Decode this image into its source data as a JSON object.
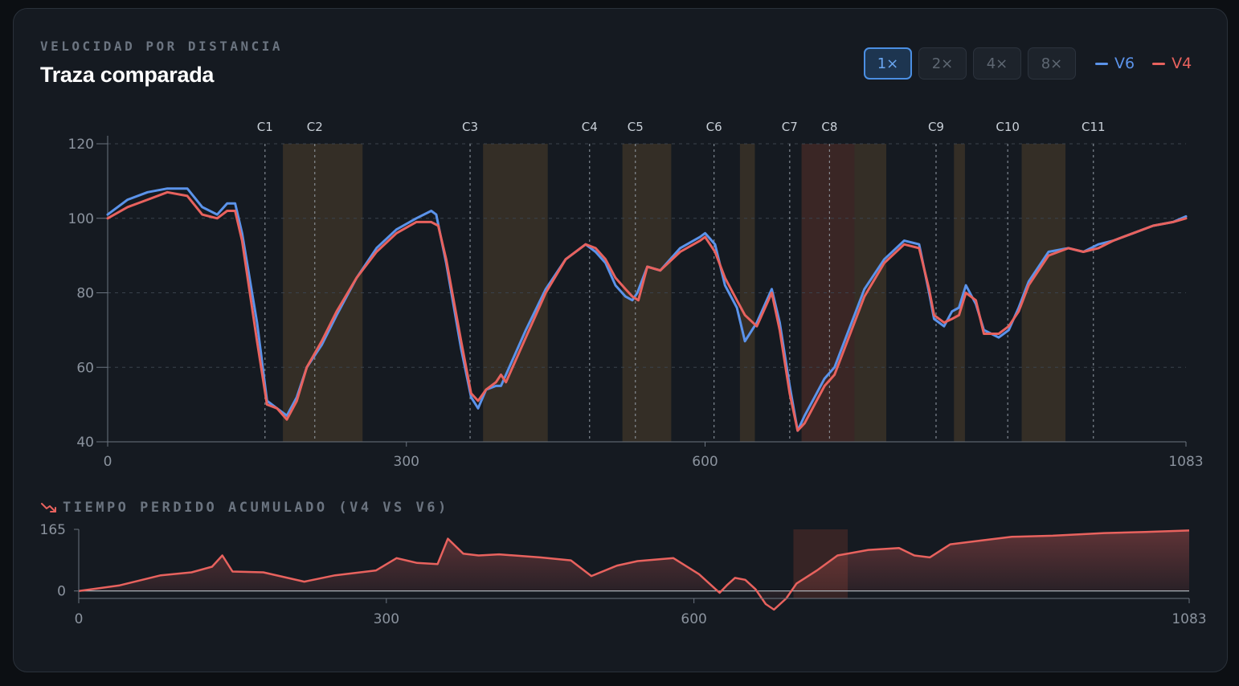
{
  "header": {
    "eyebrow": "VELOCIDAD POR DISTANCIA",
    "title": "Traza comparada"
  },
  "zoom": {
    "options": [
      "1×",
      "2×",
      "4×",
      "8×"
    ],
    "selected": "1×"
  },
  "colors": {
    "v6": "#5b93ea",
    "v4": "#e8625e",
    "highlight": "#3a3327",
    "loss_highlight": "#3b2626",
    "grid": "#3a424c",
    "axis": "#6b7480"
  },
  "chart_data": [
    {
      "type": "line",
      "xlim": [
        0,
        1083
      ],
      "ylim": [
        40,
        120
      ],
      "x_ticks": [
        "0",
        "300",
        "600",
        "1083"
      ],
      "x_tick_values": [
        0,
        300,
        600,
        1083
      ],
      "y_ticks": [
        "40",
        "60",
        "80",
        "100",
        "120"
      ],
      "y_tick_values": [
        40,
        60,
        80,
        100,
        120
      ],
      "grid": "horizontal dashed",
      "legend": "top-right",
      "corners": [
        {
          "label": "C1",
          "x": 158
        },
        {
          "label": "C2",
          "x": 208
        },
        {
          "label": "C3",
          "x": 364
        },
        {
          "label": "C4",
          "x": 484
        },
        {
          "label": "C5",
          "x": 530
        },
        {
          "label": "C6",
          "x": 609
        },
        {
          "label": "C7",
          "x": 685
        },
        {
          "label": "C8",
          "x": 725
        },
        {
          "label": "C9",
          "x": 832
        },
        {
          "label": "C10",
          "x": 904
        },
        {
          "label": "C11",
          "x": 990
        }
      ],
      "zones": [
        {
          "from": 176,
          "to": 256
        },
        {
          "from": 377,
          "to": 442
        },
        {
          "from": 517,
          "to": 566
        },
        {
          "from": 635,
          "to": 650
        },
        {
          "from": 697,
          "to": 782
        },
        {
          "from": 850,
          "to": 861
        },
        {
          "from": 918,
          "to": 962
        }
      ],
      "loss_zone": {
        "from": 697,
        "to": 750
      },
      "series": [
        {
          "name": "V6",
          "x": [
            0,
            20,
            40,
            60,
            80,
            95,
            110,
            120,
            128,
            135,
            150,
            160,
            170,
            180,
            190,
            200,
            215,
            230,
            250,
            270,
            290,
            310,
            325,
            330,
            340,
            355,
            365,
            372,
            380,
            390,
            395,
            400,
            420,
            440,
            460,
            480,
            490,
            500,
            510,
            520,
            527,
            532,
            542,
            555,
            575,
            595,
            600,
            610,
            620,
            632,
            640,
            652,
            667,
            675,
            685,
            693,
            700,
            710,
            720,
            730,
            740,
            760,
            780,
            800,
            815,
            825,
            830,
            840,
            848,
            855,
            862,
            872,
            880,
            895,
            905,
            915,
            925,
            945,
            965,
            980,
            995,
            1010,
            1030,
            1050,
            1070,
            1083
          ],
          "y": [
            101,
            105,
            107,
            108,
            108,
            103,
            101,
            104,
            104,
            96,
            72,
            51,
            49,
            47,
            52,
            60,
            66,
            74,
            84,
            92,
            97,
            100,
            102,
            101,
            88,
            65,
            52,
            49,
            54,
            55,
            55,
            58,
            70,
            81,
            89,
            93,
            91,
            88,
            82,
            79,
            78,
            80,
            87,
            86,
            92,
            95,
            96,
            93,
            82,
            76,
            67,
            72,
            81,
            72,
            55,
            43,
            47,
            52,
            57,
            60,
            67,
            81,
            89,
            94,
            93,
            80,
            73,
            71,
            75,
            76,
            82,
            77,
            70,
            68,
            70,
            76,
            83,
            91,
            92,
            91,
            93,
            94,
            96,
            98,
            99,
            100.5
          ]
        },
        {
          "name": "V4",
          "x": [
            0,
            20,
            40,
            60,
            80,
            95,
            110,
            120,
            128,
            135,
            150,
            160,
            170,
            180,
            190,
            200,
            215,
            230,
            250,
            270,
            290,
            310,
            325,
            332,
            340,
            355,
            365,
            372,
            380,
            390,
            395,
            400,
            420,
            440,
            460,
            480,
            490,
            500,
            510,
            520,
            527,
            533,
            542,
            555,
            575,
            595,
            600,
            610,
            620,
            632,
            640,
            652,
            667,
            675,
            685,
            693,
            700,
            710,
            720,
            730,
            740,
            760,
            780,
            800,
            815,
            825,
            830,
            840,
            848,
            855,
            862,
            872,
            880,
            895,
            905,
            915,
            925,
            945,
            965,
            980,
            995,
            1010,
            1030,
            1050,
            1070,
            1083
          ],
          "y": [
            100,
            103,
            105,
            107,
            106,
            101,
            100,
            102,
            102,
            94,
            67,
            50,
            49,
            46,
            51,
            60,
            67,
            75,
            84,
            91,
            96,
            99,
            99,
            98,
            89,
            67,
            53,
            51,
            54,
            56,
            58,
            56,
            68,
            80,
            89,
            93,
            92,
            89,
            84,
            81,
            79,
            78,
            87,
            86,
            91,
            94,
            95,
            91,
            84,
            78,
            74,
            71,
            80,
            70,
            53,
            43,
            45,
            50,
            55,
            58,
            65,
            79,
            88,
            93,
            92,
            81,
            74,
            72,
            73,
            74,
            80,
            78,
            69,
            69,
            71,
            75,
            82,
            90,
            92,
            91,
            92,
            94,
            96,
            98,
            99,
            100
          ]
        }
      ]
    },
    {
      "type": "area",
      "title": "TIEMPO PERDIDO ACUMULADO (V4 VS V6)",
      "xlim": [
        0,
        1083
      ],
      "ylim": [
        -20,
        165
      ],
      "x_ticks": [
        "0",
        "300",
        "600",
        "1083"
      ],
      "x_tick_values": [
        0,
        300,
        600,
        1083
      ],
      "y_ticks": [
        "0",
        "165"
      ],
      "y_tick_values": [
        0,
        165
      ],
      "series": [
        {
          "name": "V4 vs V6",
          "x": [
            0,
            40,
            80,
            110,
            130,
            140,
            150,
            180,
            220,
            250,
            290,
            310,
            330,
            350,
            360,
            375,
            390,
            410,
            450,
            480,
            500,
            525,
            545,
            580,
            605,
            625,
            632,
            640,
            650,
            660,
            670,
            678,
            690,
            700,
            720,
            740,
            770,
            800,
            815,
            830,
            850,
            880,
            910,
            950,
            1000,
            1040,
            1083
          ],
          "y": [
            0,
            15,
            42,
            50,
            65,
            95,
            52,
            50,
            25,
            42,
            55,
            88,
            75,
            72,
            140,
            100,
            95,
            98,
            90,
            82,
            40,
            68,
            80,
            88,
            45,
            -5,
            15,
            35,
            30,
            5,
            -35,
            -50,
            -20,
            20,
            55,
            95,
            110,
            115,
            95,
            90,
            125,
            135,
            145,
            148,
            155,
            158,
            162
          ]
        }
      ]
    }
  ]
}
